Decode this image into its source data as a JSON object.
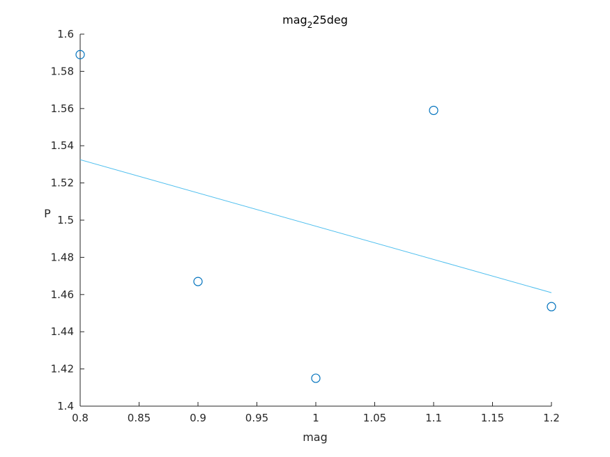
{
  "chart_data": {
    "type": "scatter",
    "title_main": "mag",
    "title_sub": "2",
    "title_rest": "25deg",
    "xlabel": "mag",
    "ylabel": "P",
    "xlim": [
      0.8,
      1.2
    ],
    "ylim": [
      1.4,
      1.6
    ],
    "xticks": [
      "0.8",
      "0.85",
      "0.9",
      "0.95",
      "1",
      "1.05",
      "1.1",
      "1.15",
      "1.2"
    ],
    "yticks": [
      "1.4",
      "1.42",
      "1.44",
      "1.46",
      "1.48",
      "1.5",
      "1.52",
      "1.54",
      "1.56",
      "1.58",
      "1.6"
    ],
    "grid": false,
    "points": [
      {
        "x": 0.8,
        "y": 1.589
      },
      {
        "x": 0.9,
        "y": 1.467
      },
      {
        "x": 1.0,
        "y": 1.415
      },
      {
        "x": 1.1,
        "y": 1.559
      },
      {
        "x": 1.2,
        "y": 1.4535
      }
    ],
    "fit_line": {
      "x": [
        0.8,
        1.2
      ],
      "y": [
        1.5325,
        1.461
      ]
    },
    "colors": {
      "points": "#0072BD",
      "fit_line": "#4DBEEE",
      "axes": "#262626"
    }
  }
}
